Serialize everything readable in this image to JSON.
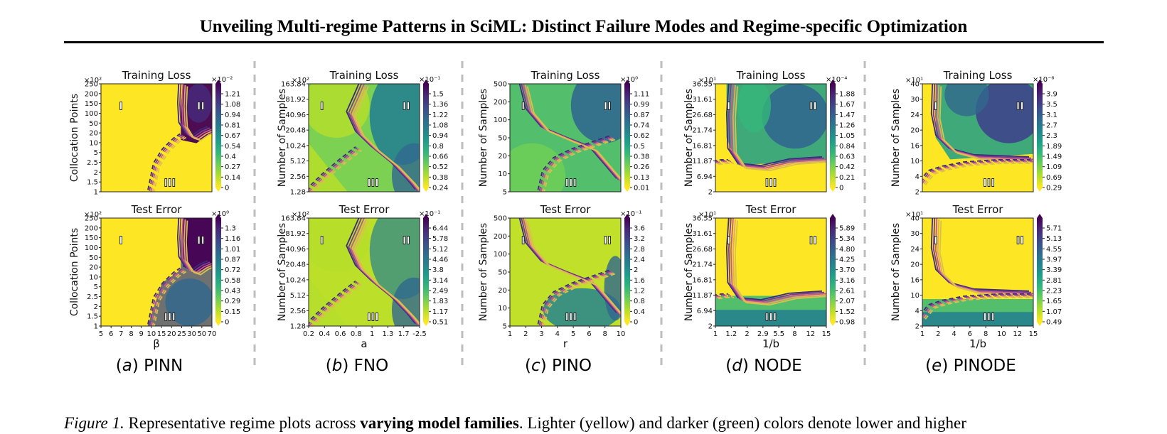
{
  "header": {
    "title": "Unveiling Multi-regime Patterns in SciML: Distinct Failure Modes and Regime-specific Optimization"
  },
  "regime_labels": [
    "I",
    "II",
    "III"
  ],
  "colormap": [
    "#fde725",
    "#b5de2b",
    "#6ece58",
    "#35b779",
    "#1f9e89",
    "#26828e",
    "#31688e",
    "#3e4989",
    "#482878",
    "#440154"
  ],
  "panels": [
    {
      "letter": "a",
      "model": "PINN",
      "ylabel": "Collocation Points",
      "xlabel": "β",
      "yticks": [
        "250",
        "200",
        "150",
        "100",
        "50",
        "20",
        "10",
        "5",
        "2.5",
        "2",
        "1.5",
        "1"
      ],
      "ymult": "×10²",
      "xticks": [
        "5",
        "6",
        "7",
        "8",
        "9",
        "10",
        "15",
        "20",
        "25",
        "30",
        "50",
        "70"
      ],
      "train": {
        "title": "Training Loss",
        "mult": "×10⁻²",
        "cticks": [
          "1.21",
          "1.08",
          "0.94",
          "0.81",
          "0.67",
          "0.54",
          "0.4",
          "0.27",
          "0.14",
          "0"
        ]
      },
      "test": {
        "title": "Test Error",
        "mult": "×10⁰",
        "cticks": [
          "1.3",
          "1.16",
          "1.01",
          "0.87",
          "0.72",
          "0.58",
          "0.43",
          "0.29",
          "0.15",
          "0"
        ]
      }
    },
    {
      "letter": "b",
      "model": "FNO",
      "ylabel": "Number of Samples",
      "xlabel": "a",
      "yticks": [
        "163.84",
        "81.92",
        "40.96",
        "20.48",
        "10.24",
        "5.12",
        "2.56",
        "1.28"
      ],
      "ymult": "×10²",
      "xticks": [
        "0.2",
        "0.4",
        "0.6",
        "0.8",
        "1",
        "1.3",
        "1.7",
        "-2.5"
      ],
      "train": {
        "title": "Training Loss",
        "mult": "×10⁻¹",
        "cticks": [
          "1.5",
          "1.36",
          "1.22",
          "1.08",
          "0.94",
          "0.8",
          "0.66",
          "0.52",
          "0.38",
          "0.24"
        ]
      },
      "test": {
        "title": "Test Error",
        "mult": "×10⁻¹",
        "cticks": [
          "6.44",
          "5.78",
          "5.12",
          "4.46",
          "3.8",
          "3.14",
          "2.49",
          "1.83",
          "1.17",
          "0.51"
        ]
      }
    },
    {
      "letter": "c",
      "model": "PINO",
      "ylabel": "Number of Samples",
      "xlabel": "r",
      "yticks": [
        "500",
        "200",
        "100",
        "50",
        "20",
        "10",
        "5"
      ],
      "ymult": "",
      "xticks": [
        "1",
        "2",
        "3",
        "4",
        "5",
        "6",
        "8",
        "10"
      ],
      "train": {
        "title": "Training Loss",
        "mult": "×10⁰",
        "cticks": [
          "1.11",
          "0.99",
          "0.87",
          "0.74",
          "0.62",
          "0.5",
          "0.38",
          "0.26",
          "0.13",
          "0.01"
        ]
      },
      "test": {
        "title": "Test Error",
        "mult": "×10⁻¹",
        "cticks": [
          "3.6",
          "3.2",
          "2.8",
          "2.4",
          "2",
          "1.6",
          "1.2",
          "0.8",
          "0.4",
          "0"
        ]
      }
    },
    {
      "letter": "d",
      "model": "NODE",
      "ylabel": "Number of Samples",
      "xlabel": "1/b",
      "yticks": [
        "36.55",
        "31.61",
        "26.68",
        "21.74",
        "16.81",
        "11.87",
        "6.94",
        "2"
      ],
      "ymult": "×10¹",
      "xticks": [
        "1",
        "1.2",
        "2",
        "2.9",
        "5.5",
        "8",
        "12",
        "15"
      ],
      "train": {
        "title": "Training Loss",
        "mult": "×10⁻⁴",
        "cticks": [
          "1.88",
          "1.67",
          "1.47",
          "1.26",
          "1.05",
          "0.84",
          "0.63",
          "0.42",
          "0.21",
          "0"
        ]
      },
      "test": {
        "title": "Test Error",
        "mult": "",
        "cticks": [
          "5.89",
          "5.34",
          "4.80",
          "4.25",
          "3.70",
          "3.16",
          "2.61",
          "2.07",
          "1.52",
          "0.98"
        ]
      }
    },
    {
      "letter": "e",
      "model": "PINODE",
      "ylabel": "Number of Samples",
      "xlabel": "1/b",
      "yticks": [
        "40",
        "30",
        "24",
        "20",
        "16",
        "10",
        "4",
        "2"
      ],
      "ymult": "×10¹",
      "xticks": [
        "1",
        "2",
        "4",
        "6",
        "8",
        "10",
        "12",
        "15"
      ],
      "train": {
        "title": "Training Loss",
        "mult": "×10⁻⁶",
        "cticks": [
          "3.9",
          "3.5",
          "3.1",
          "2.7",
          "2.3",
          "1.89",
          "1.49",
          "1.09",
          "0.69",
          "0.29"
        ]
      },
      "test": {
        "title": "Test Error",
        "mult": "",
        "cticks": [
          "5.71",
          "5.13",
          "4.55",
          "3.97",
          "3.39",
          "2.81",
          "2.23",
          "1.65",
          "1.07",
          "0.49"
        ]
      }
    }
  ],
  "caption": {
    "label": "Figure 1.",
    "text1": " Representative regime plots across ",
    "bold": "varying model families",
    "text2": ". Lighter (yellow) and darker (green) colors denote lower and higher"
  }
}
